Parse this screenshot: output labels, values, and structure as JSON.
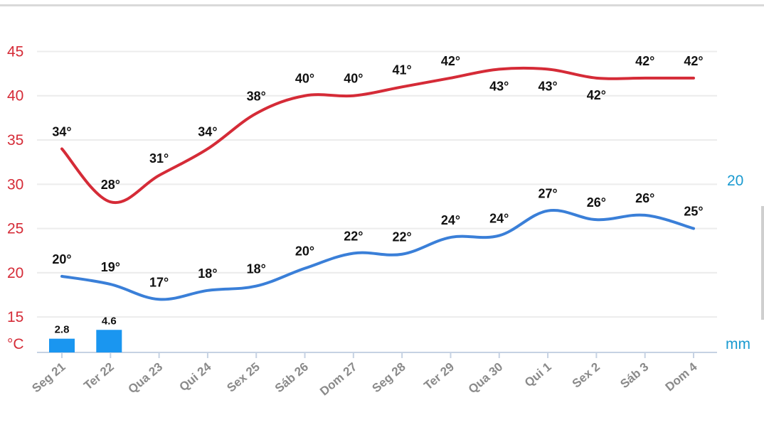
{
  "chart_data": {
    "type": "line",
    "categories": [
      "Seg 21",
      "Ter 22",
      "Qua 23",
      "Qui 24",
      "Sex 25",
      "Sáb 26",
      "Dom 27",
      "Seg 28",
      "Ter 29",
      "Qua 30",
      "Qui 1",
      "Sex 2",
      "Sáb 3",
      "Dom 4"
    ],
    "series": [
      {
        "values": [
          34,
          28,
          31,
          34,
          38,
          40,
          40,
          41,
          42,
          43,
          43,
          42,
          42,
          42
        ],
        "labels": [
          "34°",
          "28°",
          "31°",
          "34°",
          "38°",
          "40°",
          "40°",
          "41°",
          "42°",
          "43°",
          "43°",
          "42°",
          "42°",
          "42°"
        ],
        "label_pos": [
          "above",
          "above",
          "above",
          "above",
          "above",
          "above",
          "above",
          "above",
          "above",
          "below",
          "below",
          "below",
          "above",
          "above"
        ],
        "color": "#d52b37"
      },
      {
        "values": [
          19.6,
          18.7,
          17,
          18,
          18.5,
          20.5,
          22.2,
          22.1,
          24,
          24.2,
          27,
          26,
          26.5,
          25
        ],
        "labels": [
          "20°",
          "19°",
          "17°",
          "18°",
          "18°",
          "20°",
          "22°",
          "22°",
          "24°",
          "24°",
          "27°",
          "26°",
          "26°",
          "25°"
        ],
        "color": "#3a7fd8"
      },
      {
        "type": "bar",
        "values": [
          2.8,
          4.6,
          0,
          0,
          0,
          0,
          0,
          0,
          0,
          0,
          0,
          0,
          0,
          0
        ],
        "labels": [
          "2.8",
          "4.6"
        ],
        "color": "#1a96f0"
      }
    ],
    "y_left": {
      "ticks": [
        15,
        20,
        25,
        30,
        35,
        40,
        45
      ],
      "unit": "°C",
      "color": "#d52b37",
      "range": [
        11,
        46
      ]
    },
    "y_right": {
      "tick": "20",
      "unit": "mm",
      "color": "#1a9ad0"
    },
    "grid": true
  }
}
